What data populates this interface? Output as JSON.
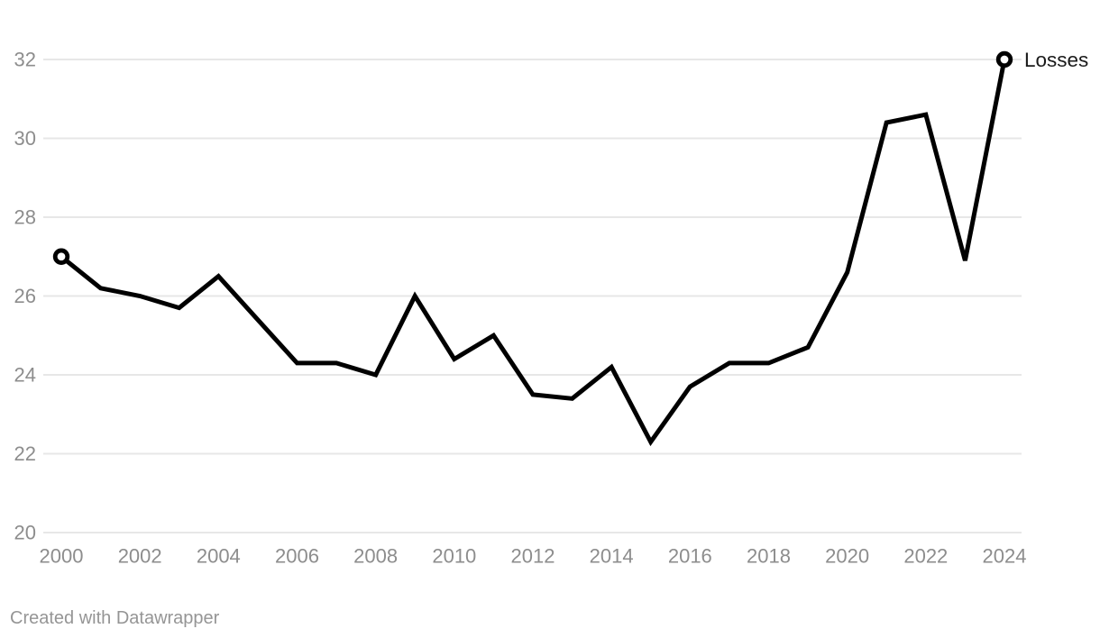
{
  "chart_data": {
    "type": "line",
    "title": "",
    "xlabel": "",
    "ylabel": "",
    "x": [
      2000,
      2001,
      2002,
      2003,
      2004,
      2005,
      2006,
      2007,
      2008,
      2009,
      2010,
      2011,
      2012,
      2013,
      2014,
      2015,
      2016,
      2017,
      2018,
      2019,
      2020,
      2021,
      2022,
      2023,
      2024
    ],
    "series": [
      {
        "name": "Losses",
        "values": [
          27.0,
          26.2,
          26.0,
          25.7,
          26.5,
          25.4,
          24.3,
          24.3,
          24.0,
          26.0,
          24.4,
          25.0,
          23.5,
          23.4,
          24.2,
          22.3,
          23.7,
          24.3,
          24.3,
          24.7,
          26.6,
          30.4,
          30.6,
          26.9,
          32.0
        ]
      }
    ],
    "ylim": [
      20,
      32
    ],
    "yticks": [
      20,
      22,
      24,
      26,
      28,
      30,
      32
    ],
    "xticks": [
      2000,
      2002,
      2004,
      2006,
      2008,
      2010,
      2012,
      2014,
      2016,
      2018,
      2020,
      2022,
      2024
    ],
    "grid": "horizontal-only",
    "legend": "direct-label-at-line-end",
    "markers": "open-circle-on-first-and-last-point"
  },
  "labels": {
    "series_end_label": "Losses"
  },
  "footer": {
    "attribution": "Created with Datawrapper"
  },
  "colors": {
    "line": "#000000",
    "marker_fill": "#ffffff",
    "grid": "#e7e7e7",
    "axis_text": "#8d8d8d",
    "series_label_text": "#1a1a1a",
    "background": "#ffffff"
  }
}
